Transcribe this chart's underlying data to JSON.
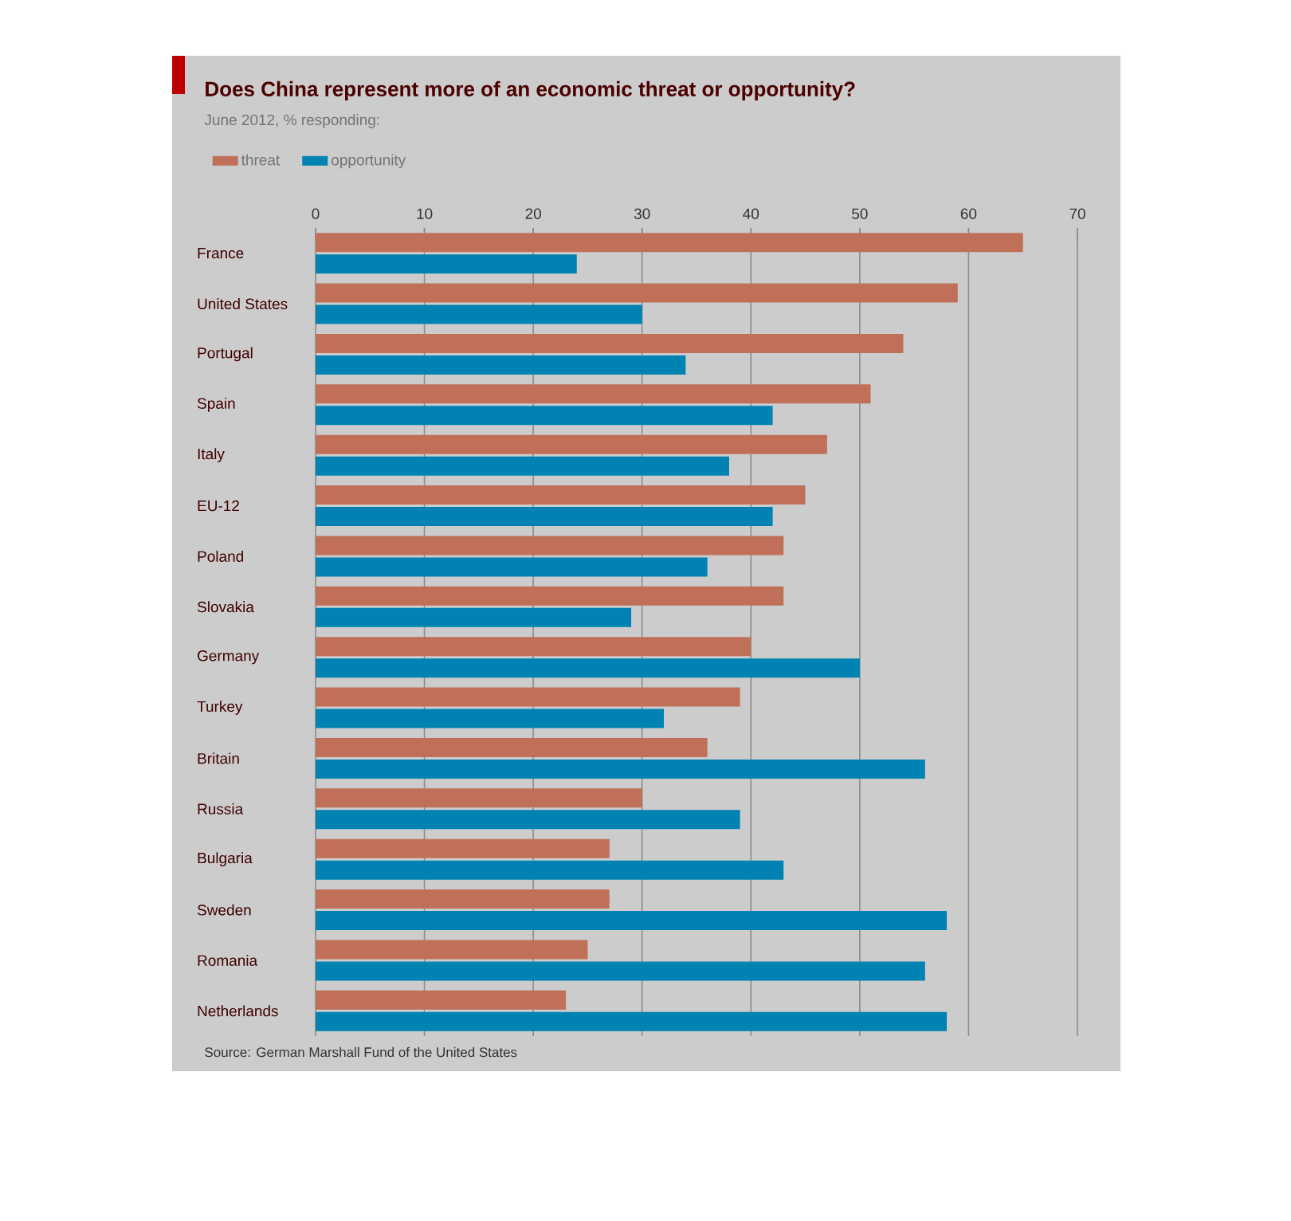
{
  "chart_data": {
    "type": "bar",
    "orientation": "horizontal",
    "title": "Does China represent more of an economic threat or opportunity?",
    "subtitle": "June 2012, % responding:",
    "categories": [
      "France",
      "United States",
      "Portugal",
      "Spain",
      "Italy",
      "EU-12",
      "Poland",
      "Slovakia",
      "Germany",
      "Turkey",
      "Britain",
      "Russia",
      "Bulgaria",
      "Sweden",
      "Romania",
      "Netherlands"
    ],
    "series": [
      {
        "name": "threat",
        "color": "#c07058",
        "values": [
          65,
          59,
          54,
          51,
          47,
          45,
          43,
          43,
          40,
          39,
          36,
          30,
          27,
          27,
          25,
          23
        ]
      },
      {
        "name": "opportunity",
        "color": "#0083b2",
        "values": [
          24,
          30,
          34,
          42,
          38,
          42,
          36,
          29,
          50,
          32,
          56,
          39,
          43,
          58,
          56,
          58
        ]
      }
    ],
    "xlim": [
      0,
      70
    ],
    "xticks": [
      0,
      10,
      20,
      30,
      40,
      50,
      60,
      70
    ],
    "grid": "x",
    "legend": "top left",
    "annotations": [
      "Source: German Marshall Fund of the United States"
    ]
  }
}
